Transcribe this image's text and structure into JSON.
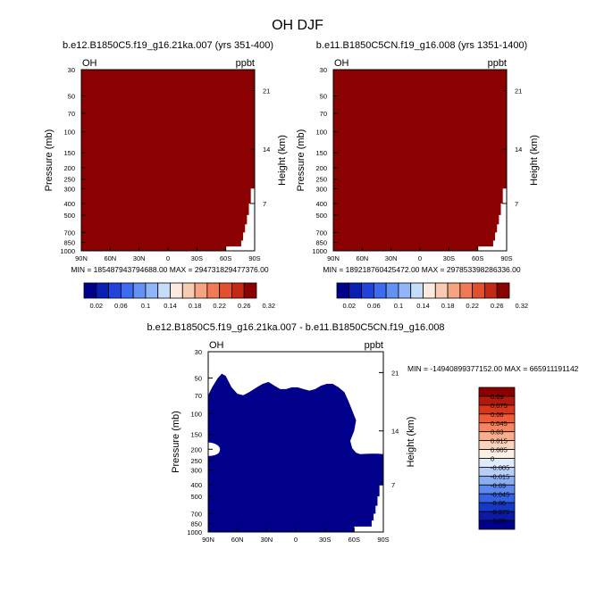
{
  "figure_title": "OH DJF",
  "colors": {
    "top_fill": "#8b0000",
    "diff_fill": "#00008b",
    "background": "#ffffff"
  },
  "chart_data": [
    {
      "type": "heatmap",
      "title": "b.e12.B1850C5.f19_g16.21ka.007 (yrs 351-400)",
      "left_label": "OH",
      "units": "ppbt",
      "ylabel": "Pressure (mb)",
      "ylabel_right": "Height (km)",
      "xticks": [
        "90N",
        "60N",
        "30N",
        "0",
        "30S",
        "60S",
        "90S"
      ],
      "yticks": [
        "30",
        "50",
        "70",
        "100",
        "150",
        "200",
        "250",
        "300",
        "400",
        "500",
        "700",
        "850",
        "1000"
      ],
      "yticks_right": [
        "21",
        "14",
        "7"
      ],
      "min_max_text": "MIN = 185487943794688.00   MAX = 294731829477376.00",
      "colorbar_labels": [
        "0.02",
        "0.06",
        "0.1",
        "0.14",
        "0.18",
        "0.22",
        "0.26",
        "0.32"
      ],
      "fill_level": "above 0.32 (entire field)"
    },
    {
      "type": "heatmap",
      "title": "b.e11.B1850C5CN.f19_g16.008 (yrs 1351-1400)",
      "left_label": "OH",
      "units": "ppbt",
      "ylabel": "Pressure (mb)",
      "ylabel_right": "Height (km)",
      "xticks": [
        "90N",
        "60N",
        "30N",
        "0",
        "30S",
        "60S",
        "90S"
      ],
      "yticks": [
        "30",
        "50",
        "70",
        "100",
        "150",
        "200",
        "250",
        "300",
        "400",
        "500",
        "700",
        "850",
        "1000"
      ],
      "yticks_right": [
        "21",
        "14",
        "7"
      ],
      "min_max_text": "MIN = 189218760425472.00   MAX = 297853398286336.00",
      "colorbar_labels": [
        "0.02",
        "0.06",
        "0.1",
        "0.14",
        "0.18",
        "0.22",
        "0.26",
        "0.32"
      ],
      "fill_level": "above 0.32 (entire field)"
    },
    {
      "type": "heatmap",
      "title": "b.e12.B1850C5.f19_g16.21ka.007 - b.e11.B1850C5CN.f19_g16.008",
      "left_label": "OH",
      "units": "ppbt",
      "ylabel": "Pressure (mb)",
      "ylabel_right": "Height (km)",
      "xticks": [
        "90N",
        "60N",
        "30N",
        "0",
        "30S",
        "60S",
        "90S"
      ],
      "yticks": [
        "30",
        "50",
        "70",
        "100",
        "150",
        "200",
        "250",
        "300",
        "400",
        "500",
        "700",
        "850",
        "1000"
      ],
      "yticks_right": [
        "21",
        "14",
        "7"
      ],
      "min_max_text": "MIN = -14940899377152.00   MAX = 665911191142",
      "colorbar_labels": [
        "0.09",
        "0.075",
        "0.06",
        "0.045",
        "0.03",
        "0.015",
        "0.005",
        "0",
        "-0.005",
        "-0.015",
        "-0.03",
        "-0.045",
        "-0.06",
        "-0.075",
        "-0.09"
      ],
      "fill_level": "below -0.09 (most of field)"
    }
  ],
  "colorbars": {
    "top": [
      "#00008b",
      "#0a1fb4",
      "#2244dd",
      "#3c6cf0",
      "#6392f4",
      "#90b6f8",
      "#c6dcfb",
      "#fbeadf",
      "#f9cbb0",
      "#f6a47f",
      "#f07a55",
      "#e2502e",
      "#c22a14",
      "#8b0000"
    ],
    "diff": [
      "#8b0000",
      "#b01a0d",
      "#d8351b",
      "#ee5b36",
      "#f68460",
      "#f9ad8d",
      "#fbd2bc",
      "#fcefe4",
      "#e0ebfb",
      "#b7cff6",
      "#8aaef1",
      "#5d88ec",
      "#3363e3",
      "#1638c7",
      "#0a1aa2",
      "#00008b"
    ]
  }
}
